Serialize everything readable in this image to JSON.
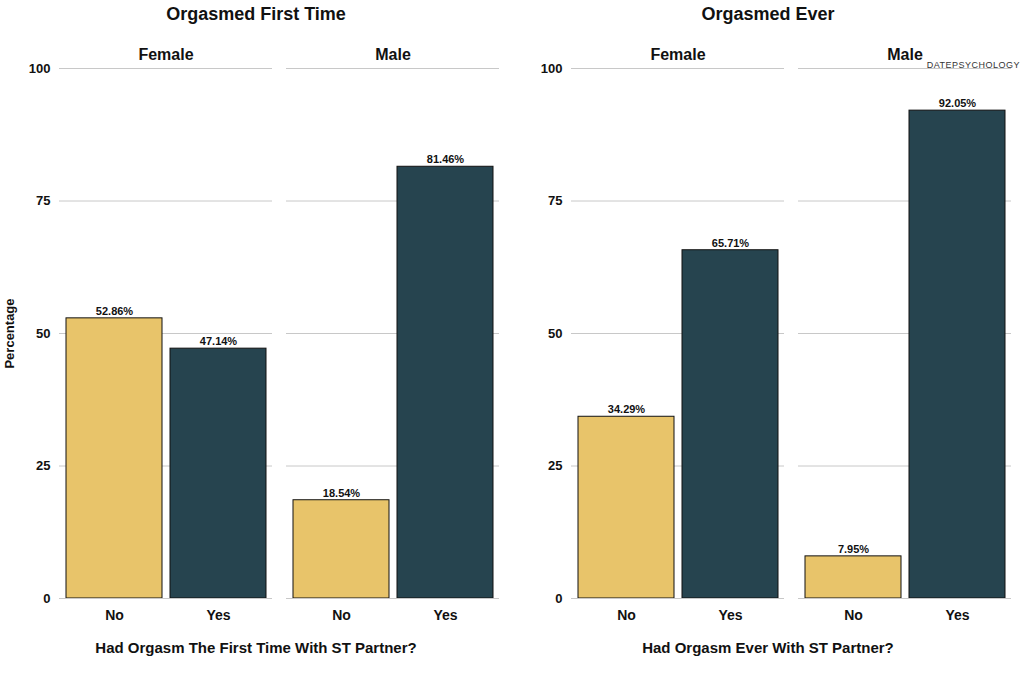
{
  "chart_data": [
    {
      "type": "bar",
      "title": "Orgasmed First Time",
      "x_label": "Had Orgasm The First Time With ST Partner?",
      "y_label": "Percentage",
      "categories": [
        "No",
        "Yes"
      ],
      "colors": [
        "#E8C46A",
        "#26444F"
      ],
      "facets": [
        {
          "name": "Female",
          "values": [
            52.86,
            47.14
          ],
          "value_labels": [
            "52.86%",
            "47.14%"
          ]
        },
        {
          "name": "Male",
          "values": [
            18.54,
            81.46
          ],
          "value_labels": [
            "18.54%",
            "81.46%"
          ]
        }
      ],
      "ylim": [
        0,
        100
      ],
      "yticks": [
        0,
        25,
        50,
        75,
        100
      ],
      "grid": true,
      "data_labels": true
    },
    {
      "type": "bar",
      "title": "Orgasmed Ever",
      "x_label": "Had Orgasm Ever With ST Partner?",
      "categories": [
        "No",
        "Yes"
      ],
      "colors": [
        "#E8C46A",
        "#26444F"
      ],
      "facets": [
        {
          "name": "Female",
          "values": [
            34.29,
            65.71
          ],
          "value_labels": [
            "34.29%",
            "65.71%"
          ]
        },
        {
          "name": "Male",
          "values": [
            7.95,
            92.05
          ],
          "value_labels": [
            "7.95%",
            "92.05%"
          ]
        }
      ],
      "ylim": [
        0,
        100
      ],
      "yticks": [
        0,
        25,
        50,
        75,
        100
      ],
      "grid": true,
      "data_labels": true
    }
  ],
  "logo": {
    "text": "DATEPSYCHOLOGY"
  }
}
